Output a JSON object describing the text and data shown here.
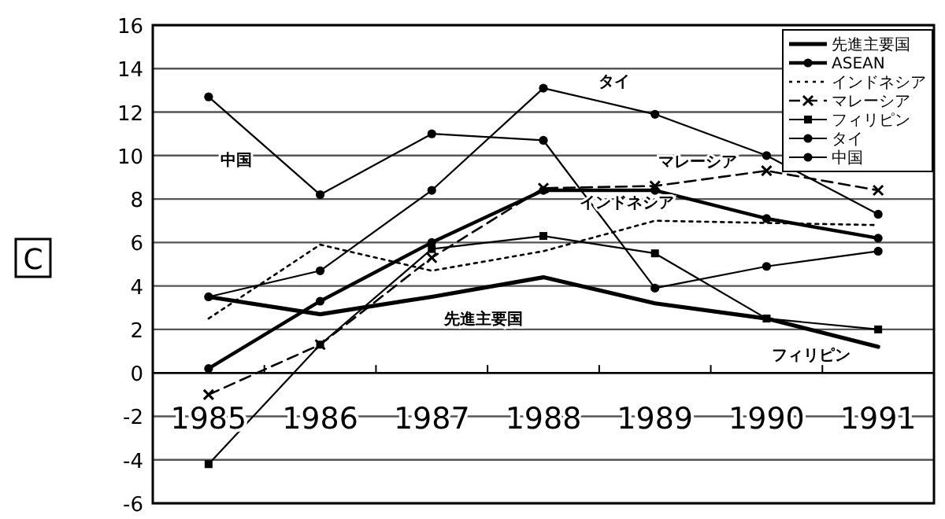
{
  "chart_data": {
    "type": "line",
    "categories": [
      "1985",
      "1986",
      "1987",
      "1988",
      "1989",
      "1990",
      "1991"
    ],
    "series": [
      {
        "name": "先進主要国",
        "color": "#000000",
        "marker": "none",
        "line_style": "solid",
        "values": [
          3.5,
          2.7,
          3.5,
          4.4,
          3.2,
          2.5,
          1.2
        ]
      },
      {
        "name": "ASEAN",
        "color": "#000000",
        "marker": "circle",
        "line_style": "solid",
        "values": [
          0.2,
          3.3,
          6.0,
          8.4,
          8.4,
          7.1,
          6.2
        ]
      },
      {
        "name": "インドネシア",
        "color": "#000000",
        "marker": "none",
        "line_style": "dotted",
        "values": [
          2.5,
          5.9,
          4.7,
          5.6,
          7.0,
          6.9,
          6.8
        ]
      },
      {
        "name": "マレーシア",
        "color": "#000000",
        "marker": "cross",
        "line_style": "dashed",
        "values": [
          -1.0,
          1.3,
          5.3,
          8.5,
          8.6,
          9.3,
          8.4
        ]
      },
      {
        "name": "フィリピン",
        "color": "#000000",
        "marker": "square",
        "line_style": "solid",
        "values": [
          -4.2,
          1.3,
          5.7,
          6.3,
          5.5,
          2.5,
          2.0
        ]
      },
      {
        "name": "タイ",
        "color": "#000000",
        "marker": "circle",
        "line_style": "solid",
        "values": [
          3.5,
          4.7,
          8.4,
          13.1,
          11.9,
          10.0,
          7.3
        ]
      },
      {
        "name": "中国",
        "color": "#000000",
        "marker": "circle",
        "line_style": "solid",
        "values": [
          12.7,
          8.2,
          11.0,
          10.7,
          3.9,
          4.9,
          5.6
        ]
      }
    ],
    "ylim": [
      -6,
      16
    ],
    "yticks": [
      -6,
      -4,
      -2,
      0,
      2,
      4,
      6,
      8,
      10,
      12,
      14,
      16
    ],
    "grid": "y",
    "legend": "top right",
    "annotations": [
      "C",
      "中国",
      "タイ",
      "マレーシア",
      "インドネシア",
      "先進主要国",
      "フィリピン"
    ]
  }
}
